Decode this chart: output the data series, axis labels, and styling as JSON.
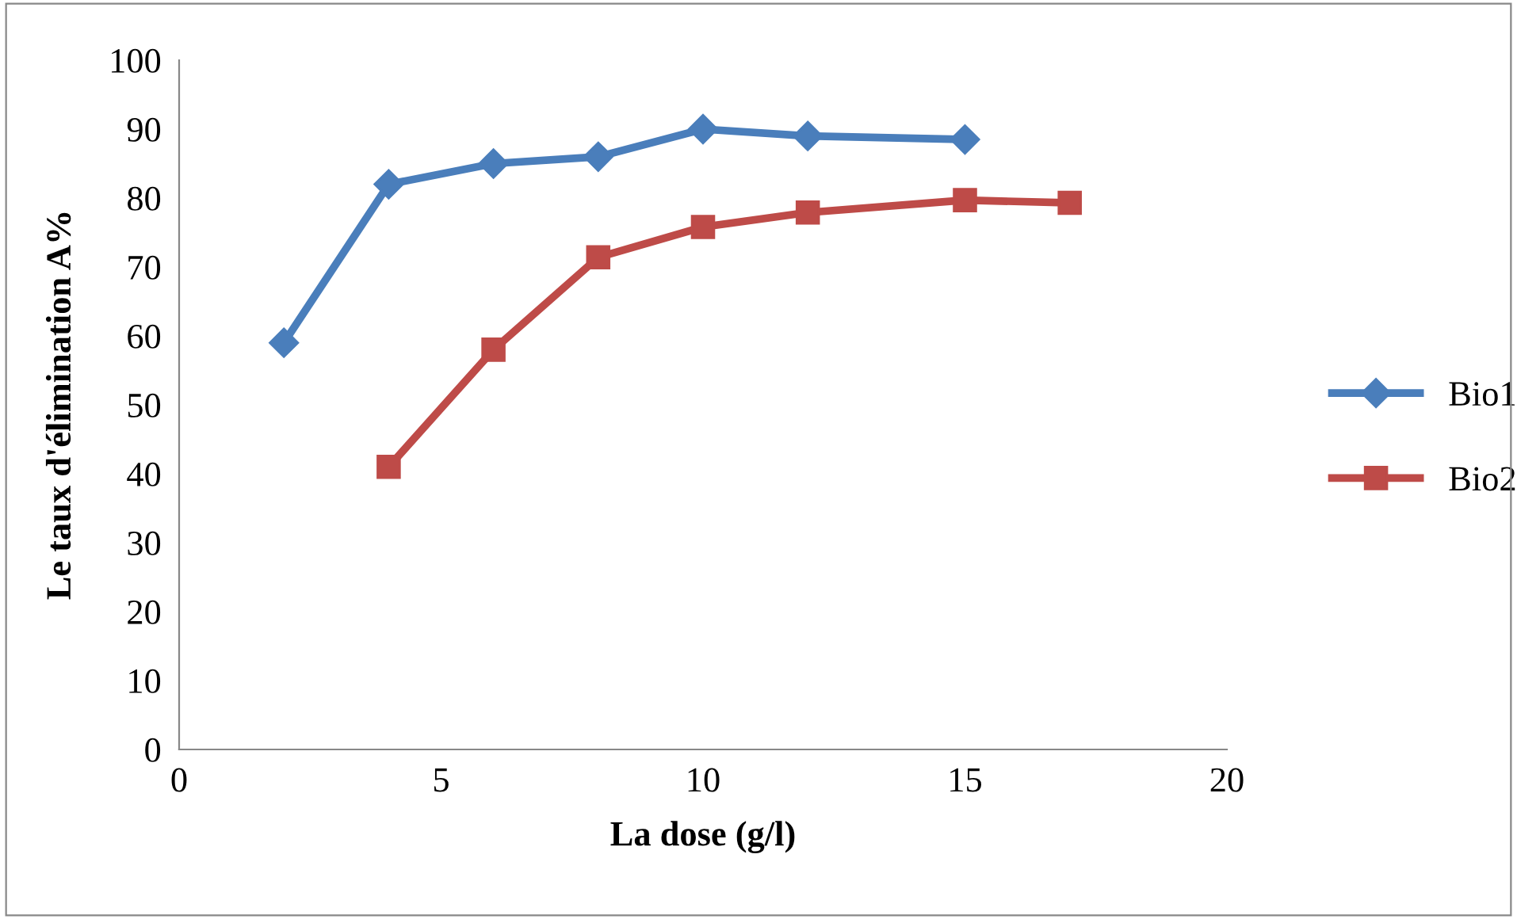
{
  "chart_data": {
    "type": "line",
    "xlabel": "La dose (g/l)",
    "ylabel": "Le taux d'élimination A%",
    "xlim": [
      0,
      20
    ],
    "xticks": [
      0,
      5,
      10,
      15,
      20
    ],
    "ylim": [
      0,
      100
    ],
    "yticks": [
      0,
      10,
      20,
      30,
      40,
      50,
      60,
      70,
      80,
      90,
      100
    ],
    "grid": false,
    "legend": "right",
    "line_style": "solid",
    "series": [
      {
        "name": "Bio1",
        "color": "#4a7ebb",
        "marker": "diamond",
        "x": [
          2,
          4,
          6,
          8,
          10,
          12,
          15
        ],
        "values": [
          59,
          82,
          85,
          86,
          90,
          89,
          88.5
        ]
      },
      {
        "name": "Bio2",
        "color": "#be4b48",
        "marker": "square",
        "x": [
          4,
          6,
          8,
          10,
          12,
          15,
          17
        ],
        "values": [
          41,
          58,
          71.4,
          75.8,
          77.9,
          79.7,
          79.3
        ]
      }
    ]
  }
}
